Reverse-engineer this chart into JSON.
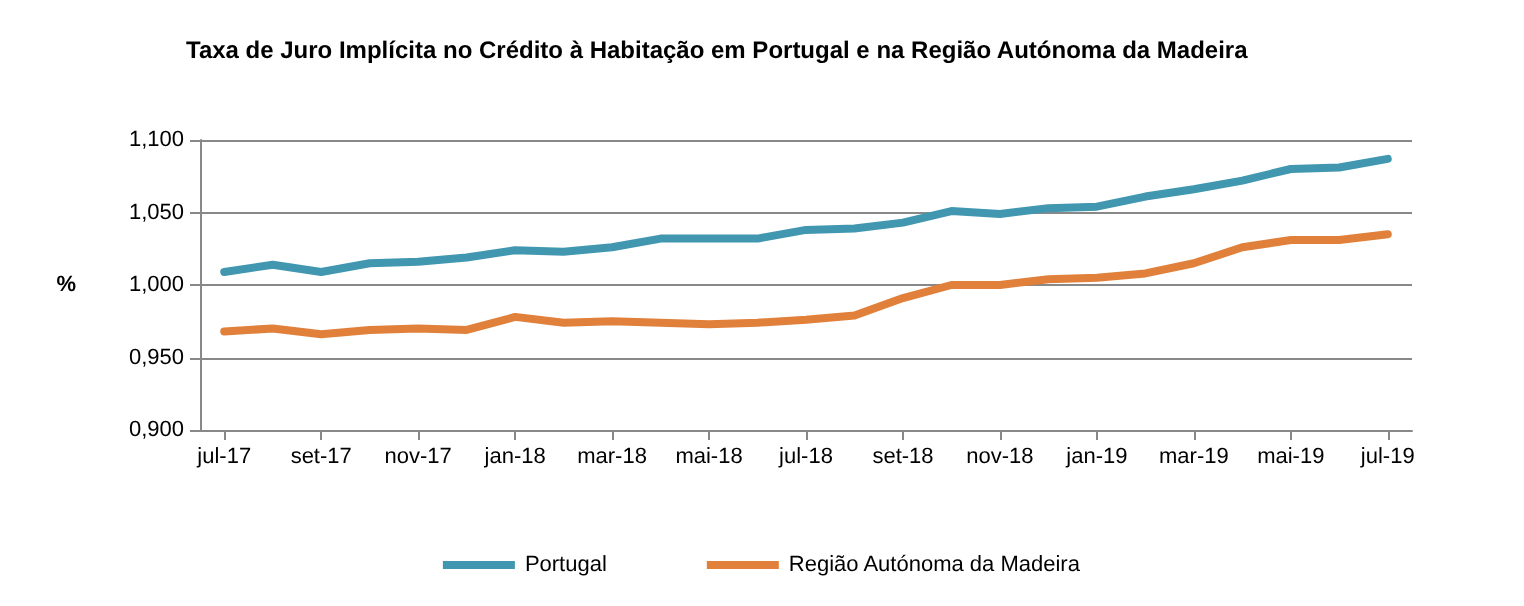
{
  "chart_data": {
    "type": "line",
    "title": "Taxa de Juro Implícita no Crédito à Habitação em Portugal e na Região Autónoma da Madeira",
    "ylabel": "%",
    "categories": [
      "jul-17",
      null,
      "set-17",
      null,
      "nov-17",
      null,
      "jan-18",
      null,
      "mar-18",
      null,
      "mai-18",
      null,
      "jul-18",
      null,
      "set-18",
      null,
      "nov-18",
      null,
      "jan-19",
      null,
      "mar-19",
      null,
      "mai-19",
      null,
      "jul-19"
    ],
    "series": [
      {
        "name": "Portugal",
        "color": "#4197b0",
        "values": [
          1.009,
          1.014,
          1.009,
          1.015,
          1.016,
          1.019,
          1.024,
          1.023,
          1.026,
          1.032,
          1.032,
          1.032,
          1.038,
          1.039,
          1.043,
          1.051,
          1.049,
          1.053,
          1.054,
          1.061,
          1.066,
          1.072,
          1.08,
          1.081,
          1.087
        ]
      },
      {
        "name": "Região Autónoma da Madeira",
        "color": "#e0803a",
        "values": [
          0.968,
          0.97,
          0.966,
          0.969,
          0.97,
          0.969,
          0.978,
          0.974,
          0.975,
          0.974,
          0.973,
          0.974,
          0.976,
          0.979,
          0.991,
          1.0,
          1.0,
          1.004,
          1.005,
          1.008,
          1.015,
          1.026,
          1.031,
          1.031,
          1.035
        ]
      }
    ],
    "ylim": [
      0.9,
      1.1
    ],
    "yticks": [
      {
        "value": 0.9,
        "label": "0,900"
      },
      {
        "value": 0.95,
        "label": "0,950"
      },
      {
        "value": 1.0,
        "label": "1,000"
      },
      {
        "value": 1.05,
        "label": "1,050"
      },
      {
        "value": 1.1,
        "label": "1,100"
      }
    ],
    "grid": "y",
    "legend": "bottom",
    "marker": "none",
    "line_style": "solid"
  }
}
